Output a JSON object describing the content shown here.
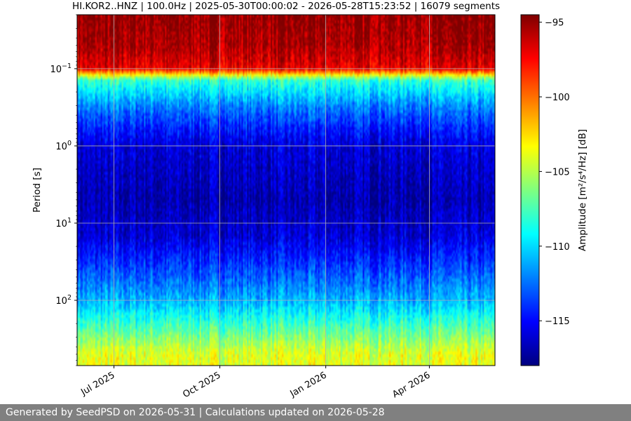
{
  "chart_data": {
    "type": "heatmap",
    "title": "HI.KOR2..HNZ | 100.0Hz | 2025-05-30T00:00:02 - 2026-05-28T15:23:52 | 16079 segments",
    "xlabel": "",
    "ylabel": "Period [s]",
    "y_scale": "log",
    "y_axis_inverted": true,
    "y_range_seconds": [
      0.02,
      700
    ],
    "y_ticks": [
      {
        "label": "10",
        "exp": "−1",
        "value": 0.1
      },
      {
        "label": "10",
        "exp": "0",
        "value": 1
      },
      {
        "label": "10",
        "exp": "1",
        "value": 10
      },
      {
        "label": "10",
        "exp": "2",
        "value": 100
      }
    ],
    "x_range": [
      "2025-05-30",
      "2026-05-28"
    ],
    "x_ticks": [
      {
        "label": "Jul 2025",
        "date": "2025-07-01"
      },
      {
        "label": "Oct 2025",
        "date": "2025-10-01"
      },
      {
        "label": "Jan 2026",
        "date": "2026-01-01"
      },
      {
        "label": "Apr 2026",
        "date": "2026-04-01"
      }
    ],
    "grid": true,
    "colormap": "jet",
    "colorbar": {
      "label": "Amplitude [m²/s⁴/Hz] [dB]",
      "range": [
        -118,
        -94.5
      ],
      "ticks": [
        -95,
        -100,
        -105,
        -110,
        -115
      ],
      "tick_labels": [
        "−95",
        "−100",
        "−105",
        "−110",
        "−115"
      ]
    },
    "amplitude_profile_by_period": [
      {
        "period": 0.02,
        "db": -95
      },
      {
        "period": 0.05,
        "db": -95.5
      },
      {
        "period": 0.1,
        "db": -97
      },
      {
        "period": 0.14,
        "db": -108
      },
      {
        "period": 0.3,
        "db": -112
      },
      {
        "period": 0.6,
        "db": -114.5
      },
      {
        "period": 1,
        "db": -116
      },
      {
        "period": 5,
        "db": -117
      },
      {
        "period": 15,
        "db": -116
      },
      {
        "period": 40,
        "db": -113.5
      },
      {
        "period": 100,
        "db": -111
      },
      {
        "period": 200,
        "db": -108
      },
      {
        "period": 500,
        "db": -104
      }
    ]
  },
  "footer": {
    "text": "Generated by SeedPSD on 2026-05-31 | Calculations updated on 2026-05-28"
  }
}
